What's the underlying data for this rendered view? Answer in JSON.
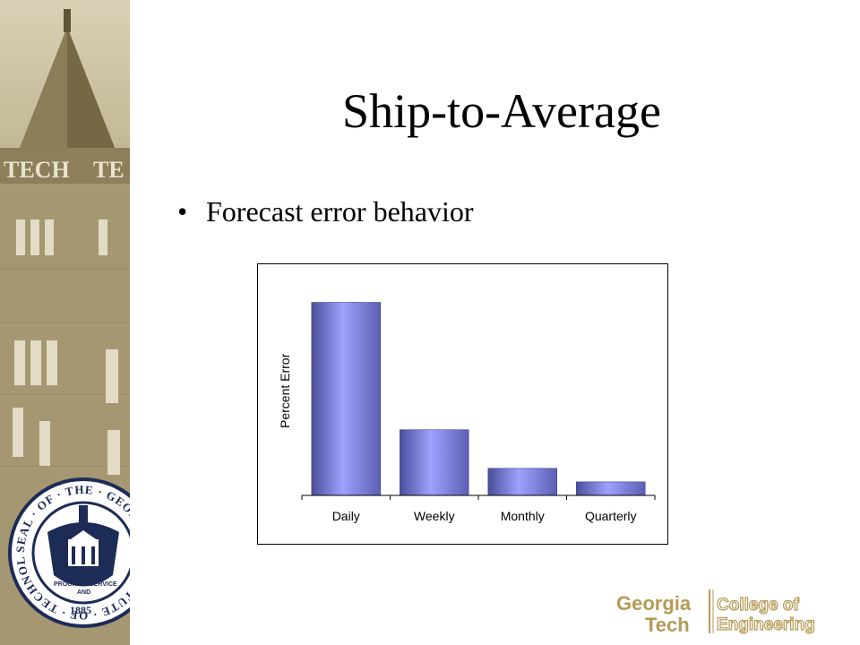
{
  "slide": {
    "title": "Ship-to-Average",
    "bullet": "Forecast error behavior"
  },
  "seal": {
    "ring_text": "SEAL · OF · THE · GEORGIA · INSTITUTE · OF · TECHNOLOGY ·",
    "year": "1885",
    "motto_left": "PROGRESS",
    "motto_right": "SERVICE",
    "motto_and": "AND"
  },
  "logo": {
    "line1_left": "Georgia",
    "line2_left": "Tech",
    "line1_right": "College of",
    "line2_right": "Engineering"
  },
  "colors": {
    "bar_fill": "#8f94f5",
    "bar_dark": "#4a4f9a",
    "sidebar": "#b7aa84",
    "logo_gold": "#b59a55"
  },
  "chart_data": {
    "type": "bar",
    "categories": [
      "Daily",
      "Weekly",
      "Monthly",
      "Quarterly"
    ],
    "values": [
      100,
      34,
      14,
      7
    ],
    "title": "",
    "xlabel": "",
    "ylabel": "Percent Error",
    "ylim": [
      0,
      110
    ],
    "grid": false
  }
}
